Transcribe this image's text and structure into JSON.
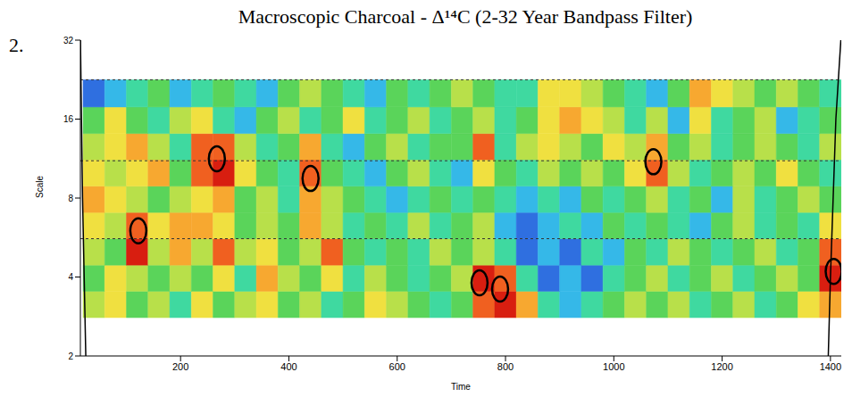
{
  "chart_data": {
    "type": "heatmap",
    "title": "Macroscopic Charcoal - Δ¹⁴C (2-32 Year Bandpass Filter)",
    "panel_label": "2.",
    "x_label": "Time",
    "y_label": "Scale",
    "xlim": [
      15,
      1420
    ],
    "xticks": [
      200,
      400,
      600,
      800,
      1000,
      1200,
      1400
    ],
    "ylim": [
      2,
      32
    ],
    "yticks": [
      2,
      4,
      8,
      16,
      32
    ],
    "log": "y",
    "time_edges": [
      20,
      60,
      100,
      140,
      180,
      220,
      260,
      300,
      340,
      380,
      420,
      460,
      500,
      540,
      580,
      620,
      660,
      700,
      740,
      780,
      820,
      860,
      900,
      940,
      980,
      1020,
      1060,
      1100,
      1140,
      1180,
      1220,
      1260,
      1300,
      1340,
      1380,
      1420
    ],
    "scale_edges": [
      2.8,
      3.53,
      4.44,
      5.6,
      7.05,
      8.88,
      11.2,
      14.1,
      17.8,
      22.6
    ],
    "zlim": [
      0,
      9
    ],
    "z": [
      [
        5,
        6,
        4,
        5,
        3,
        6,
        4,
        5,
        6,
        4,
        5,
        3,
        4,
        6,
        5,
        4,
        3,
        4,
        8,
        9,
        7,
        3,
        2,
        3,
        4,
        5,
        4,
        5,
        3,
        4,
        5,
        3,
        4,
        6,
        7
      ],
      [
        4,
        6,
        5,
        4,
        5,
        4,
        6,
        3,
        7,
        5,
        4,
        6,
        3,
        5,
        4,
        3,
        4,
        5,
        9,
        8,
        3,
        1,
        2,
        1,
        3,
        4,
        5,
        3,
        4,
        5,
        3,
        4,
        5,
        4,
        9
      ],
      [
        5,
        4,
        9,
        5,
        7,
        5,
        8,
        5,
        6,
        4,
        5,
        8,
        4,
        3,
        4,
        3,
        5,
        4,
        5,
        3,
        1,
        2,
        1,
        3,
        2,
        4,
        3,
        5,
        4,
        3,
        4,
        5,
        3,
        4,
        8
      ],
      [
        6,
        5,
        8,
        6,
        7,
        7,
        6,
        4,
        5,
        4,
        7,
        5,
        3,
        4,
        3,
        5,
        3,
        4,
        5,
        2,
        1,
        2,
        3,
        2,
        4,
        3,
        4,
        3,
        2,
        4,
        5,
        3,
        4,
        3,
        6
      ],
      [
        7,
        6,
        5,
        4,
        5,
        6,
        7,
        4,
        5,
        3,
        7,
        5,
        4,
        3,
        2,
        3,
        4,
        3,
        4,
        3,
        2,
        3,
        2,
        4,
        3,
        4,
        5,
        3,
        4,
        2,
        5,
        3,
        4,
        5,
        4
      ],
      [
        6,
        5,
        6,
        7,
        4,
        8,
        9,
        6,
        4,
        3,
        8,
        4,
        3,
        2,
        4,
        5,
        3,
        2,
        6,
        4,
        3,
        5,
        4,
        5,
        4,
        6,
        8,
        5,
        3,
        4,
        5,
        4,
        6,
        4,
        3
      ],
      [
        5,
        6,
        7,
        5,
        3,
        8,
        8,
        5,
        3,
        4,
        7,
        3,
        2,
        4,
        5,
        3,
        4,
        4,
        8,
        3,
        5,
        6,
        5,
        4,
        6,
        5,
        7,
        4,
        5,
        3,
        4,
        5,
        4,
        3,
        5
      ],
      [
        4,
        6,
        4,
        3,
        5,
        6,
        3,
        2,
        4,
        5,
        3,
        4,
        6,
        3,
        4,
        5,
        3,
        4,
        5,
        3,
        4,
        6,
        7,
        6,
        5,
        3,
        5,
        2,
        6,
        3,
        4,
        5,
        2,
        3,
        4
      ],
      [
        1,
        2,
        3,
        4,
        2,
        3,
        4,
        3,
        2,
        4,
        5,
        4,
        3,
        2,
        4,
        3,
        4,
        5,
        4,
        3,
        3,
        6,
        6,
        5,
        4,
        3,
        2,
        4,
        7,
        6,
        5,
        4,
        5,
        4,
        3
      ]
    ],
    "reference_lines": [
      22.6,
      11.1,
      5.6
    ],
    "significant": [
      {
        "time": 122,
        "scale": 6.0
      },
      {
        "time": 267,
        "scale": 11.3
      },
      {
        "time": 440,
        "scale": 9.5
      },
      {
        "time": 752,
        "scale": 3.8
      },
      {
        "time": 790,
        "scale": 3.6
      },
      {
        "time": 1073,
        "scale": 11
      },
      {
        "time": 1406,
        "scale": 4.2
      }
    ],
    "cone_of_influence": {
      "left": [
        [
          15,
          34
        ],
        [
          17,
          16
        ],
        [
          19,
          8
        ],
        [
          22,
          4
        ],
        [
          25,
          2
        ]
      ],
      "right": [
        [
          1420,
          34
        ],
        [
          1410,
          16
        ],
        [
          1405,
          8
        ],
        [
          1400,
          4
        ],
        [
          1396,
          2
        ]
      ]
    }
  }
}
